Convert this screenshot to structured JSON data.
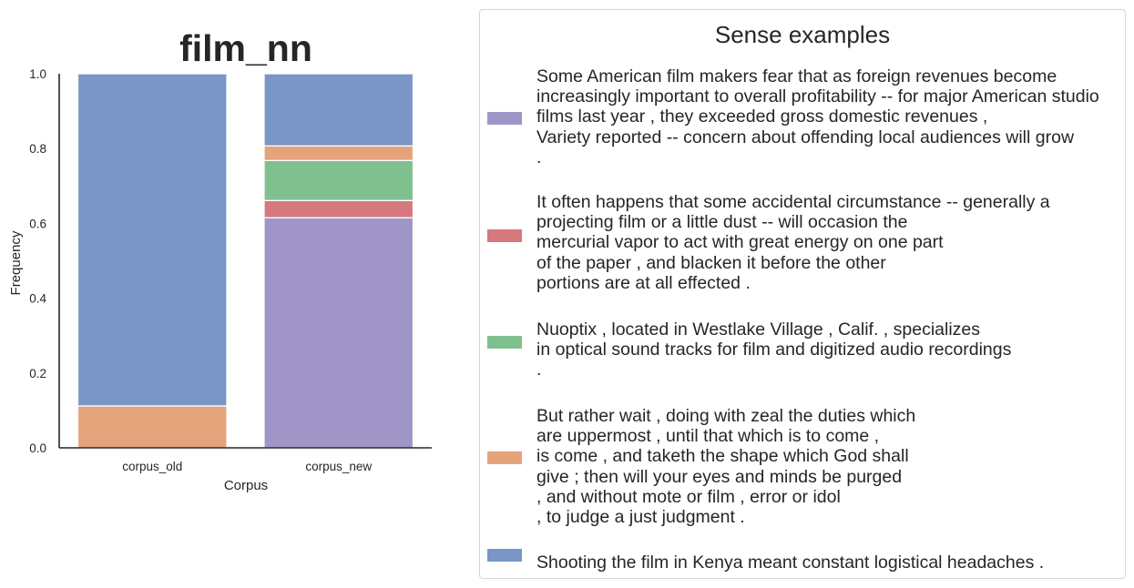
{
  "chart_data": {
    "type": "bar",
    "stacked": true,
    "title": "film_nn",
    "xlabel": "Corpus",
    "ylabel": "Frequency",
    "categories": [
      "corpus_old",
      "corpus_new"
    ],
    "ylim": [
      0,
      1.0
    ],
    "yticks": [
      "0.0",
      "0.2",
      "0.4",
      "0.6",
      "0.8",
      "1.0"
    ],
    "grid": false,
    "legend_placement": "right",
    "series": [
      {
        "color": "#a095c7",
        "values": [
          0.0,
          0.615
        ]
      },
      {
        "color": "#d6787e",
        "values": [
          0.0,
          0.046
        ]
      },
      {
        "color": "#80c08f",
        "values": [
          0.0,
          0.107
        ]
      },
      {
        "color": "#e5a37c",
        "values": [
          0.112,
          0.039
        ]
      },
      {
        "color": "#7996c6",
        "values": [
          0.888,
          0.193
        ]
      }
    ]
  },
  "legend": {
    "title": "Sense examples",
    "entries": [
      {
        "color": "#a095c7",
        "text": "Some American film makers fear that as foreign revenues become\nincreasingly important to overall profitability -- for major American studio\nfilms last year , they exceeded gross domestic revenues ,\nVariety reported -- concern about offending local audiences will grow\n."
      },
      {
        "color": "#d6787e",
        "text": "It often happens that some accidental circumstance -- generally a\nprojecting film or a little dust -- will occasion the\nmercurial vapor to act with great energy on one part\nof the paper , and blacken it before the other\nportions are at all effected ."
      },
      {
        "color": "#80c08f",
        "text": "Nuoptix , located in Westlake Village , Calif. , specializes\nin optical sound tracks for film and digitized audio recordings\n."
      },
      {
        "color": "#e5a37c",
        "text": "But rather wait , doing with zeal the duties which\nare uppermost , until that which is to come ,\nis come , and taketh the shape which God shall\ngive ; then will your eyes and minds be purged\n, and without mote or film , error or idol\n, to judge a just judgment ."
      },
      {
        "color": "#7996c6",
        "text": "\nShooting the film in Kenya meant constant logistical headaches ."
      }
    ]
  }
}
